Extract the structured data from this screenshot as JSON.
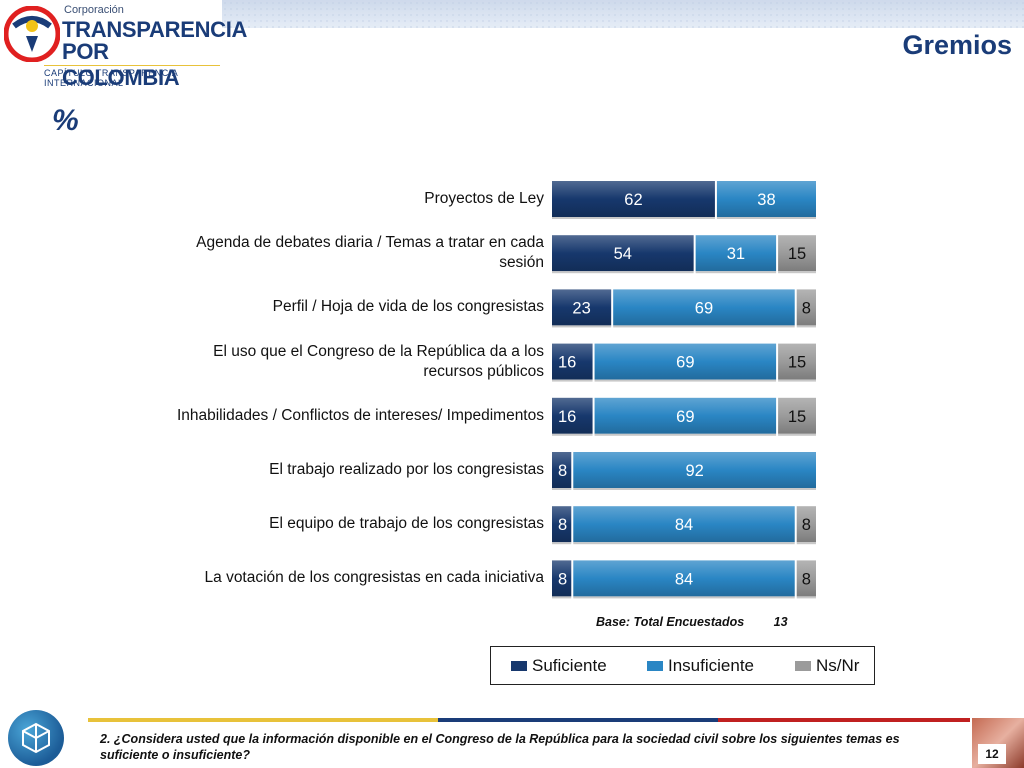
{
  "header": {
    "org_small": "Corporación",
    "org_line1": "TRANSPARENCIA",
    "org_line2": "POR COLOMBIA",
    "org_sub": "CAPÍTULO TRANSPARENCIA INTERNACIONAL",
    "page_title": "Gremios",
    "percent_mark": "%"
  },
  "chart_data": {
    "type": "bar",
    "orientation": "horizontal",
    "stacked": true,
    "categories": [
      "Proyectos de Ley",
      "Agenda de debates diaria / Temas a tratar en cada sesión",
      "Perfil / Hoja de vida de los congresistas",
      "El uso que el Congreso de la República da a los recursos públicos",
      "Inhabilidades / Conflictos de intereses/ Impedimentos",
      "El trabajo realizado por los congresistas",
      "El equipo de trabajo de los congresistas",
      "La votación de los congresistas en cada iniciativa"
    ],
    "series": [
      {
        "name": "Suficiente",
        "color": "#17386d",
        "values": [
          62,
          54,
          23,
          16,
          16,
          8,
          8,
          8
        ]
      },
      {
        "name": "Insuficiente",
        "color": "#2a86c4",
        "values": [
          38,
          31,
          69,
          69,
          69,
          92,
          84,
          84
        ]
      },
      {
        "name": "Ns/Nr",
        "color": "#9b9b9b",
        "values": [
          null,
          15,
          8,
          15,
          15,
          null,
          8,
          8
        ]
      }
    ],
    "xlim": [
      0,
      100
    ],
    "legend_position": "bottom",
    "grid": false
  },
  "base": {
    "label": "Base: Total Encuestados",
    "value": "13"
  },
  "footer": {
    "question": "2. ¿Considera usted que la información disponible en el Congreso de la República para la sociedad civil sobre los siguientes temas es suficiente o insuficiente?",
    "page_number": "12"
  }
}
